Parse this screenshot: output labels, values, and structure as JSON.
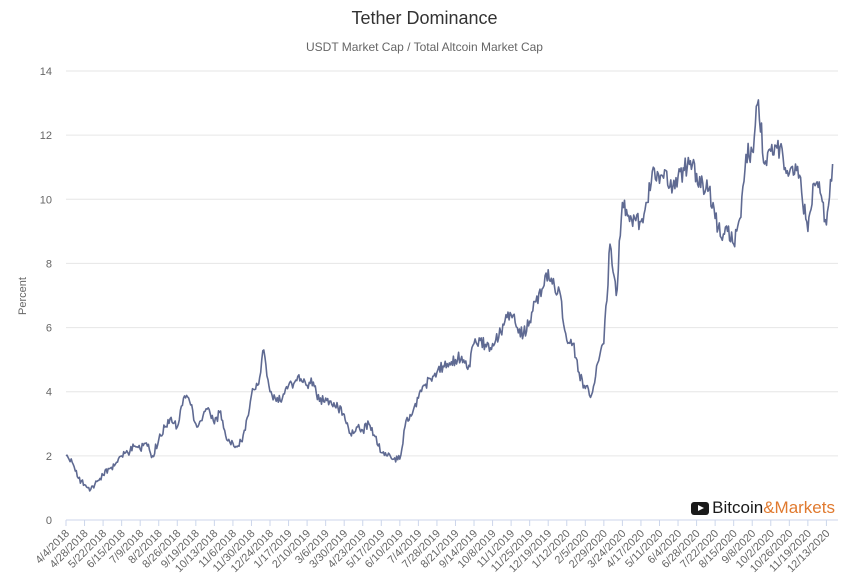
{
  "chart_data": {
    "type": "line",
    "title": "Tether Dominance",
    "subtitle": "USDT Market Cap / Total Altcoin Market Cap",
    "xlabel": "",
    "ylabel": "Percent",
    "ylim": [
      0,
      14
    ],
    "yticks": [
      0,
      2,
      4,
      6,
      8,
      10,
      12,
      14
    ],
    "grid": true,
    "legend": "none",
    "line_color": "#5f6a92",
    "xtick_labels": [
      "4/4/2018",
      "4/28/2018",
      "5/22/2018",
      "6/15/2018",
      "7/9/2018",
      "8/2/2018",
      "8/26/2018",
      "9/19/2018",
      "10/13/2018",
      "11/6/2018",
      "11/30/2018",
      "12/24/2018",
      "1/17/2019",
      "2/10/2019",
      "3/6/2019",
      "3/30/2019",
      "4/23/2019",
      "5/17/2019",
      "6/10/2019",
      "7/4/2019",
      "7/28/2019",
      "8/21/2019",
      "9/14/2019",
      "10/8/2019",
      "11/1/2019",
      "11/25/2019",
      "12/19/2019",
      "1/12/2020",
      "2/5/2020",
      "2/29/2020",
      "3/24/2020",
      "4/17/2020",
      "5/11/2020",
      "6/4/2020",
      "6/28/2020",
      "7/22/2020",
      "8/15/2020",
      "9/8/2020",
      "10/2/2020",
      "10/26/2020",
      "11/19/2020",
      "12/13/2020"
    ],
    "series": [
      {
        "name": "",
        "x": [
          "2018-04-04",
          "2018-04-12",
          "2018-04-20",
          "2018-04-28",
          "2018-05-06",
          "2018-05-14",
          "2018-05-22",
          "2018-05-30",
          "2018-06-07",
          "2018-06-15",
          "2018-06-23",
          "2018-07-01",
          "2018-07-09",
          "2018-07-17",
          "2018-07-25",
          "2018-08-02",
          "2018-08-10",
          "2018-08-18",
          "2018-08-26",
          "2018-09-03",
          "2018-09-11",
          "2018-09-19",
          "2018-09-27",
          "2018-10-05",
          "2018-10-13",
          "2018-10-21",
          "2018-10-29",
          "2018-11-06",
          "2018-11-14",
          "2018-11-22",
          "2018-11-30",
          "2018-12-08",
          "2018-12-16",
          "2018-12-24",
          "2019-01-01",
          "2019-01-09",
          "2019-01-17",
          "2019-01-25",
          "2019-02-02",
          "2019-02-10",
          "2019-02-18",
          "2019-02-26",
          "2019-03-06",
          "2019-03-14",
          "2019-03-22",
          "2019-03-30",
          "2019-04-07",
          "2019-04-15",
          "2019-04-23",
          "2019-05-01",
          "2019-05-09",
          "2019-05-17",
          "2019-05-25",
          "2019-06-02",
          "2019-06-10",
          "2019-06-18",
          "2019-06-26",
          "2019-07-04",
          "2019-07-12",
          "2019-07-20",
          "2019-07-28",
          "2019-08-05",
          "2019-08-13",
          "2019-08-21",
          "2019-08-29",
          "2019-09-06",
          "2019-09-14",
          "2019-09-22",
          "2019-09-30",
          "2019-10-08",
          "2019-10-16",
          "2019-10-24",
          "2019-11-01",
          "2019-11-09",
          "2019-11-17",
          "2019-11-25",
          "2019-12-03",
          "2019-12-11",
          "2019-12-19",
          "2019-12-27",
          "2020-01-04",
          "2020-01-12",
          "2020-01-20",
          "2020-01-28",
          "2020-02-05",
          "2020-02-13",
          "2020-02-21",
          "2020-02-29",
          "2020-03-08",
          "2020-03-16",
          "2020-03-24",
          "2020-04-01",
          "2020-04-09",
          "2020-04-17",
          "2020-04-25",
          "2020-05-03",
          "2020-05-11",
          "2020-05-19",
          "2020-05-27",
          "2020-06-04",
          "2020-06-12",
          "2020-06-20",
          "2020-06-28",
          "2020-07-06",
          "2020-07-14",
          "2020-07-22",
          "2020-07-30",
          "2020-08-07",
          "2020-08-15",
          "2020-08-23",
          "2020-08-31",
          "2020-09-08",
          "2020-09-16",
          "2020-09-24",
          "2020-10-02",
          "2020-10-10",
          "2020-10-18",
          "2020-10-26",
          "2020-11-03",
          "2020-11-11",
          "2020-11-19",
          "2020-11-27",
          "2020-12-05",
          "2020-12-13",
          "2020-12-21"
        ],
        "values": [
          2.0,
          1.8,
          1.3,
          1.1,
          0.95,
          1.2,
          1.4,
          1.6,
          1.75,
          2.0,
          2.1,
          2.3,
          2.2,
          2.4,
          2.0,
          2.5,
          2.9,
          3.2,
          2.9,
          3.8,
          3.7,
          3.0,
          3.1,
          3.5,
          3.0,
          3.4,
          2.5,
          2.4,
          2.3,
          2.8,
          3.9,
          4.2,
          5.3,
          4.0,
          3.7,
          3.8,
          4.2,
          4.3,
          4.4,
          4.2,
          4.3,
          3.7,
          3.8,
          3.6,
          3.5,
          3.3,
          2.7,
          2.9,
          2.8,
          3.0,
          2.6,
          2.1,
          2.0,
          1.9,
          1.9,
          3.1,
          3.3,
          3.8,
          4.2,
          4.4,
          4.6,
          4.8,
          4.9,
          5.0,
          5.1,
          4.7,
          5.5,
          5.6,
          5.4,
          5.5,
          5.7,
          6.2,
          6.4,
          6.0,
          5.8,
          6.2,
          6.8,
          7.2,
          7.8,
          7.3,
          7.0,
          5.6,
          5.5,
          4.6,
          4.1,
          3.9,
          4.9,
          5.5,
          8.6,
          7.0,
          9.9,
          9.5,
          9.4,
          9.3,
          9.9,
          11.0,
          10.5,
          10.9,
          10.2,
          10.7,
          10.9,
          11.2,
          10.8,
          10.5,
          10.3,
          9.4,
          8.8,
          9.0,
          8.6,
          9.4,
          11.4,
          11.5,
          13.1,
          11.1,
          11.5,
          11.6,
          11.3,
          10.8,
          11.1,
          10.2,
          9.0,
          10.5,
          10.2,
          9.2,
          11.1
        ]
      }
    ]
  },
  "logo": {
    "part1": "Bitcoin",
    "amp": "&",
    "part2": "Markets"
  }
}
